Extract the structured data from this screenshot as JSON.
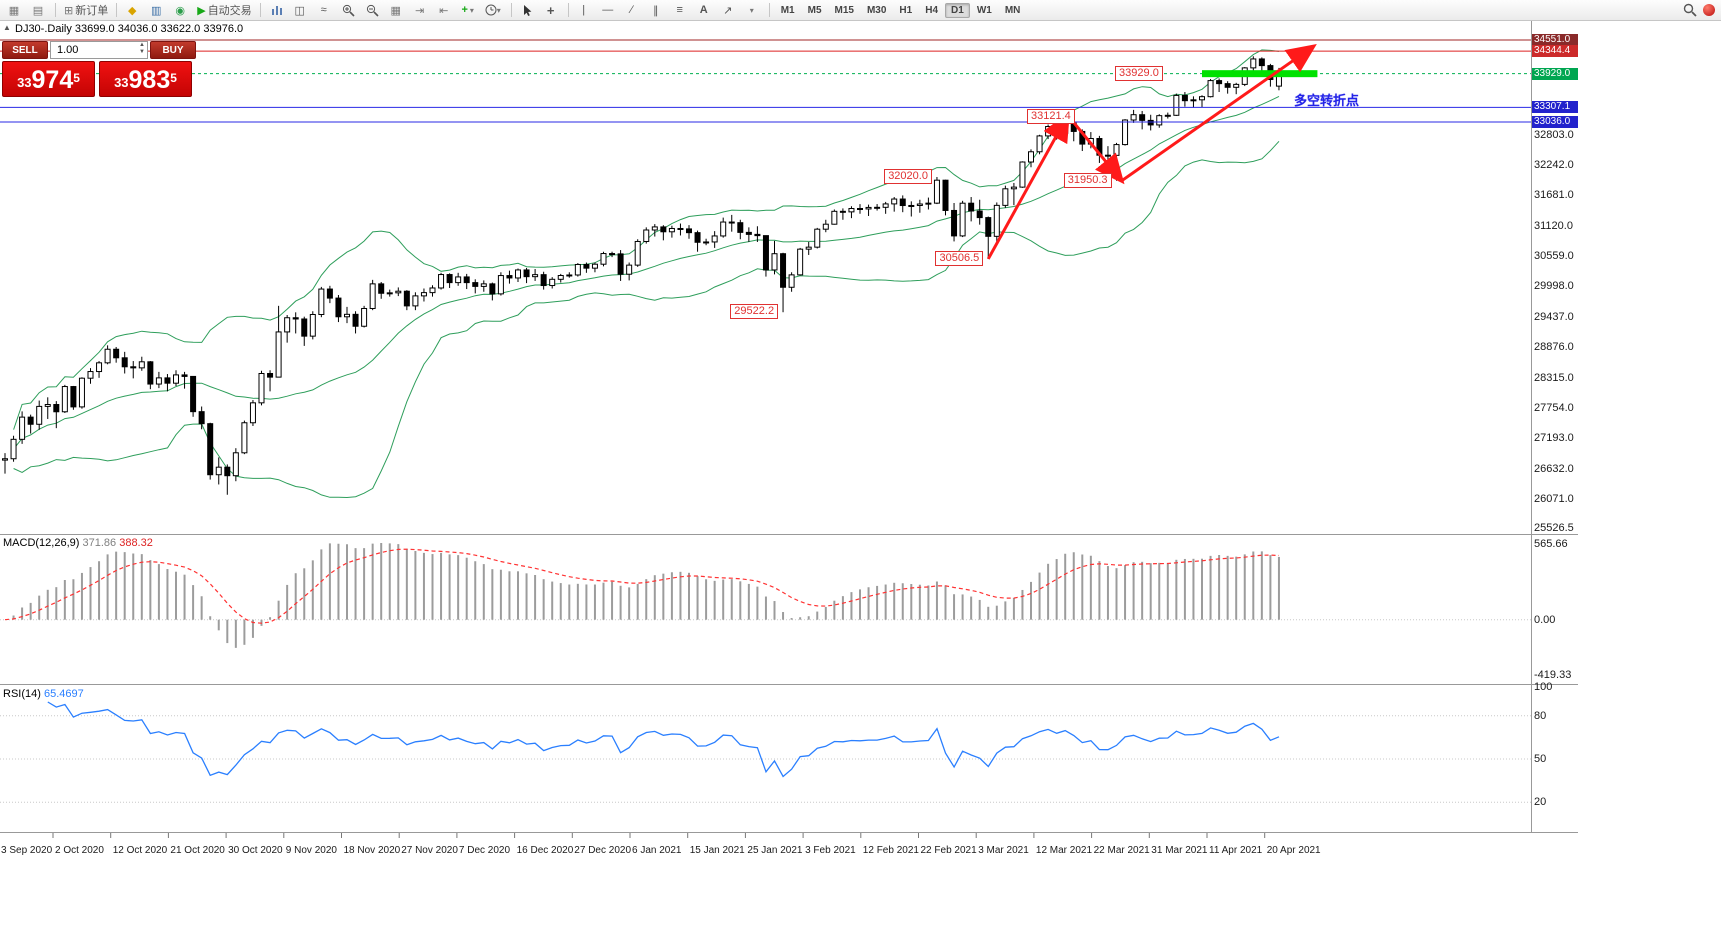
{
  "toolbar": {
    "new_order_label": "新订单",
    "autotrade_label": "自动交易",
    "text_tool_label": "A",
    "timeframes": [
      "M1",
      "M5",
      "M15",
      "M30",
      "H1",
      "H4",
      "D1",
      "W1",
      "MN"
    ],
    "active_timeframe": "D1"
  },
  "chart": {
    "symbol_title": "DJ30-.Daily  33699.0 34036.0 33622.0 33976.0",
    "one_click": {
      "sell_label": "SELL",
      "buy_label": "BUY",
      "volume": "1.00",
      "sell_price": "33974.5",
      "buy_price": "33983.5"
    },
    "note_text": "多空转折点",
    "price_axis": {
      "labels": [
        32803.0,
        32242.0,
        31681.0,
        31120.0,
        30559.0,
        29998.0,
        29437.0,
        28876.0,
        28315.0,
        27754.0,
        27193.0,
        26632.0,
        26071.0,
        25526.5
      ]
    },
    "tags": [
      {
        "text": "34551.0",
        "price": 34551.0,
        "bg": "#8a2a2a"
      },
      {
        "text": "34344.4",
        "price": 34344.4,
        "bg": "#cc2a2a"
      },
      {
        "text": "33929.0",
        "price": 33929.0,
        "bg": "#00a651"
      },
      {
        "text": "33307.1",
        "price": 33307.1,
        "bg": "#2323cc"
      },
      {
        "text": "33036.0",
        "price": 33036.0,
        "bg": "#2323cc"
      }
    ],
    "hlines": [
      {
        "price": 34551.0,
        "color": "#a22424",
        "style": "solid"
      },
      {
        "price": 34344.4,
        "color": "#dd2222",
        "style": "solid"
      },
      {
        "price": 33929.0,
        "color": "#00b050",
        "style": "dash"
      },
      {
        "price": 33307.1,
        "color": "#2a2ae6",
        "style": "solid"
      },
      {
        "price": 33036.0,
        "color": "#2a2ae6",
        "style": "solid"
      }
    ],
    "green_zone": {
      "price": 33929.0,
      "i_from": 140,
      "i_to": 153.5,
      "color": "#00e100"
    },
    "arrows": [
      {
        "from_i": 115,
        "from_p": 30506,
        "to_i": 124.3,
        "to_p": 33160
      },
      {
        "from_i": 124.3,
        "from_p": 33160,
        "to_i": 130.6,
        "to_p": 31950
      },
      {
        "from_i": 130.6,
        "from_p": 31950,
        "to_i": 153,
        "to_p": 34430
      }
    ],
    "callouts": [
      {
        "text": "33929.0",
        "i": 136,
        "p": 33929
      },
      {
        "text": "33121.4",
        "i": 125.7,
        "p": 33121
      },
      {
        "text": "32020.0",
        "i": 109,
        "p": 32020
      },
      {
        "text": "31950.3",
        "i": 130,
        "p": 31950
      },
      {
        "text": "30506.5",
        "i": 115,
        "p": 30506
      },
      {
        "text": "29522.2",
        "i": 91,
        "p": 29522
      }
    ]
  },
  "chart_data": {
    "type": "candlestick",
    "symbol": "DJ30-",
    "timeframe": "Daily",
    "current_bar": {
      "open": 33699.0,
      "high": 34036.0,
      "low": 33622.0,
      "close": 33976.0
    },
    "ylim": [
      25443,
      34902
    ],
    "x_labels": [
      "3 Sep 2020",
      "2 Oct 2020",
      "12 Oct 2020",
      "21 Oct 2020",
      "30 Oct 2020",
      "9 Nov 2020",
      "18 Nov 2020",
      "27 Nov 2020",
      "7 Dec 2020",
      "16 Dec 2020",
      "27 Dec 2020",
      "6 Jan 2021",
      "15 Jan 2021",
      "25 Jan 2021",
      "3 Feb 2021",
      "12 Feb 2021",
      "22 Feb 2021",
      "3 Mar 2021",
      "12 Mar 2021",
      "22 Mar 2021",
      "31 Mar 2021",
      "11 Apr 2021",
      "20 Apr 2021"
    ],
    "ohlc": [
      [
        26790,
        26920,
        26540,
        26815
      ],
      [
        26815,
        27240,
        26760,
        27174
      ],
      [
        27174,
        27690,
        27090,
        27584
      ],
      [
        27584,
        27630,
        27280,
        27452
      ],
      [
        27452,
        27890,
        27350,
        27782
      ],
      [
        27782,
        27950,
        27550,
        27817
      ],
      [
        27817,
        27880,
        27380,
        27683
      ],
      [
        27683,
        28180,
        27660,
        28149
      ],
      [
        28149,
        28160,
        27720,
        27773
      ],
      [
        27773,
        28320,
        27740,
        28303
      ],
      [
        28303,
        28490,
        28200,
        28426
      ],
      [
        28426,
        28620,
        28310,
        28587
      ],
      [
        28587,
        28910,
        28560,
        28838
      ],
      [
        28838,
        28880,
        28590,
        28680
      ],
      [
        28680,
        28790,
        28390,
        28514
      ],
      [
        28514,
        28620,
        28300,
        28494
      ],
      [
        28494,
        28700,
        28440,
        28606
      ],
      [
        28606,
        28620,
        28100,
        28195
      ],
      [
        28195,
        28420,
        28120,
        28309
      ],
      [
        28309,
        28380,
        28060,
        28211
      ],
      [
        28211,
        28450,
        28160,
        28364
      ],
      [
        28364,
        28420,
        28110,
        28336
      ],
      [
        28336,
        28340,
        27590,
        27685
      ],
      [
        27685,
        27780,
        27360,
        27463
      ],
      [
        27463,
        27480,
        26430,
        26520
      ],
      [
        26520,
        26840,
        26340,
        26659
      ],
      [
        26659,
        26710,
        26150,
        26502
      ],
      [
        26502,
        27010,
        26400,
        26925
      ],
      [
        26925,
        27520,
        26900,
        27480
      ],
      [
        27480,
        27900,
        27420,
        27848
      ],
      [
        27848,
        28440,
        27800,
        28390
      ],
      [
        28390,
        28450,
        28060,
        28323
      ],
      [
        28323,
        29640,
        28320,
        29158
      ],
      [
        29158,
        29470,
        28960,
        29420
      ],
      [
        29420,
        29520,
        29130,
        29397
      ],
      [
        29397,
        29440,
        28900,
        29080
      ],
      [
        29080,
        29540,
        29020,
        29480
      ],
      [
        29480,
        29990,
        29430,
        29950
      ],
      [
        29950,
        30010,
        29690,
        29783
      ],
      [
        29783,
        29840,
        29340,
        29438
      ],
      [
        29438,
        29620,
        29320,
        29483
      ],
      [
        29483,
        29540,
        29130,
        29263
      ],
      [
        29263,
        29640,
        29240,
        29591
      ],
      [
        29591,
        30120,
        29560,
        30046
      ],
      [
        30046,
        30080,
        29770,
        29872
      ],
      [
        29872,
        29940,
        29810,
        29880
      ],
      [
        29880,
        29980,
        29820,
        29910
      ],
      [
        29910,
        29930,
        29560,
        29639
      ],
      [
        29639,
        29890,
        29560,
        29824
      ],
      [
        29824,
        29960,
        29720,
        29884
      ],
      [
        29884,
        30020,
        29810,
        29970
      ],
      [
        29970,
        30250,
        29940,
        30218
      ],
      [
        30218,
        30240,
        29970,
        30069
      ],
      [
        30069,
        30250,
        30010,
        30174
      ],
      [
        30174,
        30230,
        29950,
        30069
      ],
      [
        30069,
        30130,
        29870,
        29999
      ],
      [
        29999,
        30110,
        29900,
        30046
      ],
      [
        30046,
        30070,
        29740,
        29861
      ],
      [
        29861,
        30260,
        29830,
        30199
      ],
      [
        30199,
        30290,
        30050,
        30155
      ],
      [
        30155,
        30330,
        30080,
        30303
      ],
      [
        30303,
        30340,
        30060,
        30179
      ],
      [
        30179,
        30320,
        30100,
        30216
      ],
      [
        30216,
        30270,
        29940,
        30015
      ],
      [
        30015,
        30170,
        29960,
        30130
      ],
      [
        30130,
        30230,
        30070,
        30200
      ],
      [
        30200,
        30260,
        30160,
        30210
      ],
      [
        30210,
        30430,
        30180,
        30404
      ],
      [
        30404,
        30440,
        30250,
        30336
      ],
      [
        30336,
        30440,
        30260,
        30409
      ],
      [
        30409,
        30640,
        30370,
        30606
      ],
      [
        30606,
        30640,
        30540,
        30600
      ],
      [
        30600,
        30670,
        30100,
        30224
      ],
      [
        30224,
        30440,
        30110,
        30392
      ],
      [
        30392,
        30870,
        30360,
        30829
      ],
      [
        30829,
        31090,
        30790,
        31041
      ],
      [
        31041,
        31150,
        30920,
        31098
      ],
      [
        31098,
        31130,
        30850,
        31008
      ],
      [
        31008,
        31120,
        30900,
        31069
      ],
      [
        31069,
        31160,
        30940,
        31061
      ],
      [
        31061,
        31130,
        30880,
        30992
      ],
      [
        30992,
        31030,
        30640,
        30814
      ],
      [
        30814,
        30880,
        30760,
        30820
      ],
      [
        30820,
        31020,
        30710,
        30931
      ],
      [
        30931,
        31270,
        30900,
        31188
      ],
      [
        31188,
        31320,
        31010,
        31176
      ],
      [
        31176,
        31230,
        30870,
        30997
      ],
      [
        30997,
        31090,
        30820,
        30960
      ],
      [
        30960,
        31110,
        30820,
        30937
      ],
      [
        30937,
        30940,
        30180,
        30303
      ],
      [
        30303,
        30840,
        30220,
        30603
      ],
      [
        30603,
        30620,
        29522,
        29983
      ],
      [
        29983,
        30260,
        29900,
        30212
      ],
      [
        30212,
        30710,
        30200,
        30687
      ],
      [
        30687,
        30820,
        30580,
        30724
      ],
      [
        30724,
        31080,
        30700,
        31056
      ],
      [
        31056,
        31230,
        31000,
        31148
      ],
      [
        31148,
        31420,
        31140,
        31386
      ],
      [
        31386,
        31440,
        31230,
        31376
      ],
      [
        31376,
        31480,
        31260,
        31438
      ],
      [
        31438,
        31520,
        31340,
        31430
      ],
      [
        31430,
        31510,
        31300,
        31458
      ],
      [
        31458,
        31520,
        31400,
        31460
      ],
      [
        31460,
        31560,
        31340,
        31523
      ],
      [
        31523,
        31650,
        31380,
        31613
      ],
      [
        31613,
        31680,
        31370,
        31493
      ],
      [
        31493,
        31570,
        31290,
        31494
      ],
      [
        31494,
        31600,
        31360,
        31521
      ],
      [
        31521,
        31640,
        31420,
        31537
      ],
      [
        31537,
        32020,
        31520,
        31961
      ],
      [
        31961,
        31970,
        31310,
        31402
      ],
      [
        31402,
        31540,
        30830,
        30932
      ],
      [
        30932,
        31580,
        30910,
        31536
      ],
      [
        31536,
        31650,
        31200,
        31392
      ],
      [
        31392,
        31600,
        31140,
        31270
      ],
      [
        31270,
        31290,
        30506,
        30924
      ],
      [
        30924,
        31550,
        30820,
        31496
      ],
      [
        31496,
        31860,
        31450,
        31802
      ],
      [
        31802,
        31910,
        31500,
        31833
      ],
      [
        31833,
        32310,
        31820,
        32297
      ],
      [
        32297,
        32530,
        32200,
        32486
      ],
      [
        32486,
        32800,
        32440,
        32779
      ],
      [
        32779,
        32990,
        32720,
        32953
      ],
      [
        32953,
        33000,
        32710,
        32826
      ],
      [
        32826,
        33121,
        32790,
        33015
      ],
      [
        33015,
        33060,
        32680,
        32862
      ],
      [
        32862,
        32900,
        32500,
        32628
      ],
      [
        32628,
        32850,
        32550,
        32731
      ],
      [
        32731,
        32780,
        32280,
        32423
      ],
      [
        32423,
        32590,
        32120,
        32420
      ],
      [
        32420,
        32650,
        31950,
        32619
      ],
      [
        32619,
        33090,
        32600,
        33073
      ],
      [
        33073,
        33260,
        33020,
        33171
      ],
      [
        33171,
        33240,
        32900,
        33066
      ],
      [
        33066,
        33170,
        32880,
        32982
      ],
      [
        32982,
        33180,
        32930,
        33153
      ],
      [
        33153,
        33210,
        33100,
        33160
      ],
      [
        33160,
        33560,
        33150,
        33527
      ],
      [
        33527,
        33590,
        33320,
        33430
      ],
      [
        33430,
        33510,
        33300,
        33446
      ],
      [
        33446,
        33530,
        33310,
        33504
      ],
      [
        33504,
        33830,
        33490,
        33801
      ],
      [
        33801,
        33840,
        33590,
        33745
      ],
      [
        33745,
        33790,
        33560,
        33677
      ],
      [
        33677,
        33760,
        33550,
        33731
      ],
      [
        33731,
        34050,
        33700,
        34036
      ],
      [
        34036,
        34250,
        33980,
        34201
      ],
      [
        34201,
        34230,
        33980,
        34078
      ],
      [
        34078,
        34110,
        33690,
        33821
      ],
      [
        33699,
        34036,
        33622,
        33976
      ]
    ]
  },
  "macd": {
    "title": "MACD(12,26,9)",
    "value_main": "371.86",
    "value_signal": "388.32",
    "params": {
      "fast": 12,
      "slow": 26,
      "signal": 9
    },
    "scale_top": "565.66",
    "scale_zero": "0.00",
    "scale_bottom": "-419.33"
  },
  "rsi": {
    "title": "RSI(14)",
    "value": "65.4697",
    "period": 14,
    "levels": [
      80,
      50,
      20
    ],
    "scale_labels": [
      "100",
      "80",
      "50",
      "20"
    ]
  }
}
